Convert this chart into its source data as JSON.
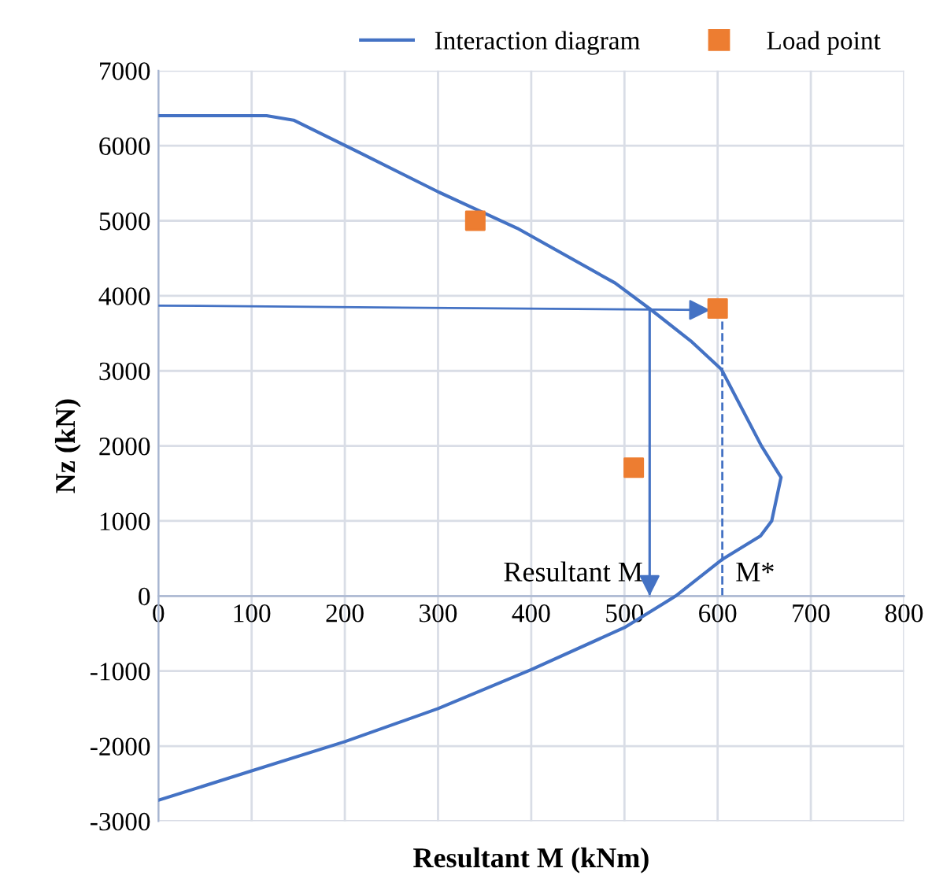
{
  "chart_data": {
    "type": "line",
    "xlabel": "Resultant M (kNm)",
    "ylabel": "Nz (kN)",
    "xlim": [
      0,
      800
    ],
    "xticks": [
      0,
      100,
      200,
      300,
      400,
      500,
      600,
      700,
      800
    ],
    "ylim": [
      -3000,
      7000
    ],
    "yticks": [
      -3000,
      -2000,
      -1000,
      0,
      1000,
      2000,
      3000,
      4000,
      5000,
      6000,
      7000
    ],
    "grid": true,
    "legend": "top",
    "series": [
      {
        "name": "Interaction diagram",
        "color": "#4472c4",
        "marker": "none",
        "line_style": "solid",
        "x": [
          0,
          116,
          145,
          217,
          301,
          385,
          490,
          529,
          571,
          604,
          647,
          668,
          658,
          646,
          604,
          555,
          500,
          400,
          300,
          200,
          100,
          0
        ],
        "values": [
          6400,
          6400,
          6340,
          5900,
          5380,
          4900,
          4170,
          3810,
          3400,
          3020,
          2000,
          1580,
          1000,
          800,
          480,
          0,
          -420,
          -980,
          -1500,
          -1940,
          -2330,
          -2720
        ]
      },
      {
        "name": "Load point",
        "type": "scatter",
        "color": "#ed7d31",
        "marker": "square",
        "x": [
          340,
          600,
          510
        ],
        "values": [
          5000,
          3830,
          1710
        ]
      }
    ],
    "ref_lines": [
      {
        "axis": "x",
        "value": 527,
        "label": "Resultant M",
        "color": "#4472c4",
        "line_style": "solid"
      },
      {
        "axis": "x",
        "value": 605,
        "label": "M*",
        "color": "#4472c4",
        "line_style": "dashed"
      }
    ]
  }
}
